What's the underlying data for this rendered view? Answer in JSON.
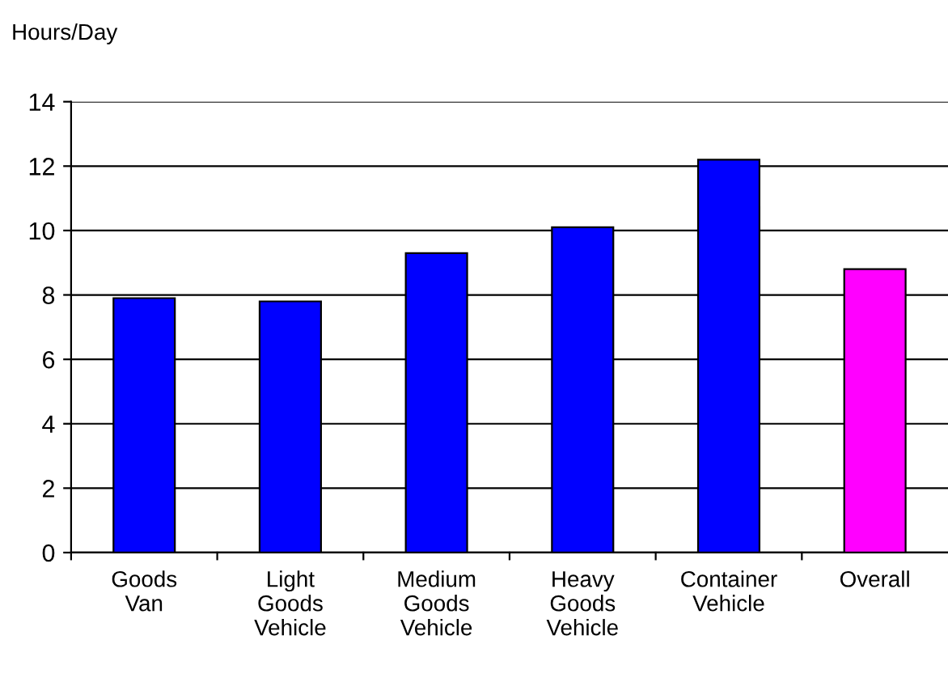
{
  "chart_data": {
    "type": "bar",
    "ylabel": "Hours/Day",
    "categories": [
      "Goods\nVan",
      "Light\nGoods\nVehicle",
      "Medium\nGoods\nVehicle",
      "Heavy\nGoods\nVehicle",
      "Container\nVehicle",
      "Overall"
    ],
    "values": [
      7.9,
      7.8,
      9.3,
      10.1,
      12.2,
      8.8
    ],
    "colors": [
      "#0000ff",
      "#0000ff",
      "#0000ff",
      "#0000ff",
      "#0000ff",
      "#ff00ff"
    ],
    "ylim": [
      0,
      14
    ],
    "yticks": [
      0,
      2,
      4,
      6,
      8,
      10,
      12,
      14
    ],
    "grid": "y"
  }
}
